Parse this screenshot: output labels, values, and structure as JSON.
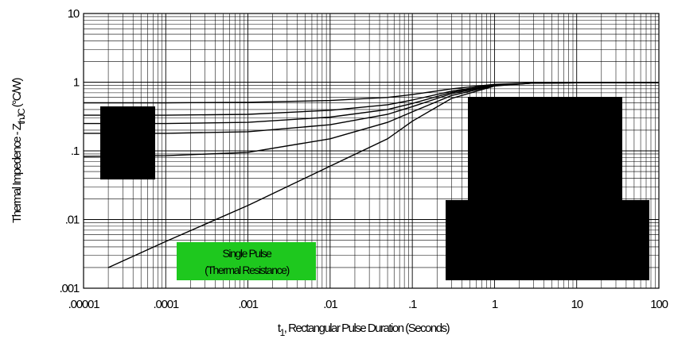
{
  "chart_data": {
    "type": "line",
    "x_scale": "log",
    "y_scale": "log",
    "xlim": [
      1e-05,
      100
    ],
    "ylim": [
      0.001,
      10
    ],
    "grid": true,
    "x_ticks": [
      {
        "value": 1e-05,
        "label": ".00001"
      },
      {
        "value": 0.0001,
        "label": ".0001"
      },
      {
        "value": 0.001,
        "label": ".001"
      },
      {
        "value": 0.01,
        "label": ".01"
      },
      {
        "value": 0.1,
        "label": ".1"
      },
      {
        "value": 1,
        "label": "1"
      },
      {
        "value": 10,
        "label": "10"
      },
      {
        "value": 100,
        "label": "100"
      }
    ],
    "y_ticks": [
      {
        "value": 0.001,
        "label": ".001"
      },
      {
        "value": 0.01,
        "label": ".01"
      },
      {
        "value": 0.1,
        "label": ".1"
      },
      {
        "value": 1,
        "label": "1"
      },
      {
        "value": 10,
        "label": "10"
      }
    ],
    "ylabel": {
      "prefix": "Thermal Impedence - Z",
      "sub": "thJC",
      "suffix": " (°C/W)"
    },
    "xlabel": {
      "prefix": "t",
      "sub": "1",
      "suffix": ",  Rectangular Pulse Duration (Seconds)"
    },
    "annotation": {
      "line1": "Single Pulse",
      "line2": "(Thermal Resistance)",
      "color": "#1ec81e"
    },
    "series": [
      {
        "x": [
          1e-05,
          0.0001,
          0.001,
          0.01,
          0.05,
          0.1,
          0.3,
          1,
          3,
          10,
          100
        ],
        "y": [
          0.5,
          0.5,
          0.51,
          0.54,
          0.6,
          0.66,
          0.8,
          0.93,
          0.97,
          0.98,
          0.98
        ]
      },
      {
        "x": [
          1e-05,
          0.0001,
          0.001,
          0.01,
          0.05,
          0.1,
          0.3,
          1,
          3,
          10,
          100
        ],
        "y": [
          0.33,
          0.33,
          0.34,
          0.39,
          0.47,
          0.55,
          0.74,
          0.92,
          0.97,
          0.98,
          0.98
        ]
      },
      {
        "x": [
          1e-05,
          0.0001,
          0.001,
          0.01,
          0.05,
          0.1,
          0.3,
          1,
          3,
          10,
          100
        ],
        "y": [
          0.25,
          0.25,
          0.26,
          0.31,
          0.4,
          0.49,
          0.71,
          0.91,
          0.97,
          0.98,
          0.98
        ]
      },
      {
        "x": [
          1e-05,
          0.0001,
          0.001,
          0.01,
          0.05,
          0.1,
          0.3,
          1,
          3,
          10,
          100
        ],
        "y": [
          0.18,
          0.18,
          0.19,
          0.24,
          0.34,
          0.44,
          0.68,
          0.9,
          0.97,
          0.98,
          0.98
        ]
      },
      {
        "x": [
          1e-05,
          0.0001,
          0.001,
          0.01,
          0.05,
          0.1,
          0.3,
          1,
          3,
          10,
          100
        ],
        "y": [
          0.083,
          0.085,
          0.095,
          0.15,
          0.26,
          0.37,
          0.64,
          0.89,
          0.97,
          0.98,
          0.98
        ]
      },
      {
        "x": [
          2e-05,
          0.0001,
          0.001,
          0.01,
          0.05,
          0.1,
          0.3,
          1,
          3,
          10,
          100
        ],
        "y": [
          0.002,
          0.0048,
          0.016,
          0.06,
          0.15,
          0.27,
          0.58,
          0.88,
          0.97,
          0.98,
          0.98
        ]
      }
    ]
  }
}
